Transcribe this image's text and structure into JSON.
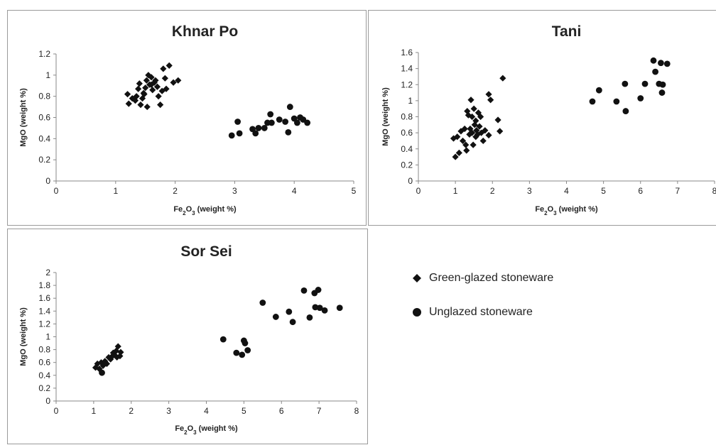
{
  "legend": {
    "items": [
      {
        "label": "Green-glazed stoneware",
        "marker": "diamond"
      },
      {
        "label": "Unglazed stoneware",
        "marker": "circle"
      }
    ]
  },
  "chart_data": [
    {
      "id": "khnar",
      "type": "scatter",
      "title": "Khnar Po",
      "xlabel": "Fe2O3 (weight %)",
      "ylabel": "MgO (weight %)",
      "xlim": [
        0,
        5
      ],
      "ylim": [
        0,
        1.2
      ],
      "xticks": [
        0,
        1,
        2,
        3,
        4,
        5
      ],
      "yticks": [
        0,
        0.2,
        0.4,
        0.6,
        0.8,
        1,
        1.2
      ],
      "grid": false,
      "series": [
        {
          "name": "Green-glazed stoneware",
          "marker": "diamond",
          "points": [
            [
              1.2,
              0.82
            ],
            [
              1.22,
              0.73
            ],
            [
              1.28,
              0.78
            ],
            [
              1.33,
              0.76
            ],
            [
              1.35,
              0.8
            ],
            [
              1.38,
              0.87
            ],
            [
              1.4,
              0.92
            ],
            [
              1.42,
              0.72
            ],
            [
              1.45,
              0.78
            ],
            [
              1.47,
              0.83
            ],
            [
              1.5,
              0.88
            ],
            [
              1.52,
              0.95
            ],
            [
              1.53,
              0.7
            ],
            [
              1.55,
              1.0
            ],
            [
              1.57,
              0.91
            ],
            [
              1.6,
              0.98
            ],
            [
              1.62,
              0.86
            ],
            [
              1.65,
              0.93
            ],
            [
              1.67,
              0.95
            ],
            [
              1.7,
              0.89
            ],
            [
              1.72,
              0.8
            ],
            [
              1.75,
              0.72
            ],
            [
              1.78,
              0.85
            ],
            [
              1.8,
              1.06
            ],
            [
              1.83,
              0.97
            ],
            [
              1.85,
              0.87
            ],
            [
              1.9,
              1.09
            ],
            [
              1.97,
              0.93
            ],
            [
              2.05,
              0.95
            ],
            [
              1.48,
              0.82
            ],
            [
              1.6,
              0.91
            ]
          ]
        },
        {
          "name": "Unglazed stoneware",
          "marker": "circle",
          "points": [
            [
              2.95,
              0.43
            ],
            [
              3.05,
              0.56
            ],
            [
              3.08,
              0.45
            ],
            [
              3.3,
              0.49
            ],
            [
              3.35,
              0.45
            ],
            [
              3.4,
              0.5
            ],
            [
              3.5,
              0.5
            ],
            [
              3.55,
              0.55
            ],
            [
              3.6,
              0.63
            ],
            [
              3.62,
              0.55
            ],
            [
              3.75,
              0.58
            ],
            [
              3.85,
              0.56
            ],
            [
              3.9,
              0.46
            ],
            [
              3.93,
              0.7
            ],
            [
              4.0,
              0.59
            ],
            [
              4.05,
              0.55
            ],
            [
              4.1,
              0.6
            ],
            [
              4.15,
              0.58
            ],
            [
              4.22,
              0.55
            ]
          ]
        }
      ]
    },
    {
      "id": "tani",
      "type": "scatter",
      "title": "Tani",
      "xlabel": "Fe2O3 (weight %)",
      "ylabel": "MgO (weight %)",
      "xlim": [
        0,
        8
      ],
      "ylim": [
        0,
        1.6
      ],
      "xticks": [
        0,
        1,
        2,
        3,
        4,
        5,
        6,
        7,
        8
      ],
      "yticks": [
        0,
        0.2,
        0.4,
        0.6,
        0.8,
        1,
        1.2,
        1.4,
        1.6
      ],
      "grid": false,
      "series": [
        {
          "name": "Green-glazed stoneware",
          "marker": "diamond",
          "points": [
            [
              0.95,
              0.53
            ],
            [
              1.0,
              0.3
            ],
            [
              1.05,
              0.55
            ],
            [
              1.1,
              0.35
            ],
            [
              1.15,
              0.62
            ],
            [
              1.2,
              0.5
            ],
            [
              1.25,
              0.65
            ],
            [
              1.28,
              0.45
            ],
            [
              1.3,
              0.38
            ],
            [
              1.32,
              0.87
            ],
            [
              1.35,
              0.82
            ],
            [
              1.38,
              0.58
            ],
            [
              1.4,
              0.65
            ],
            [
              1.42,
              1.01
            ],
            [
              1.45,
              0.6
            ],
            [
              1.48,
              0.45
            ],
            [
              1.5,
              0.9
            ],
            [
              1.52,
              0.7
            ],
            [
              1.55,
              0.75
            ],
            [
              1.57,
              0.63
            ],
            [
              1.6,
              0.58
            ],
            [
              1.62,
              0.85
            ],
            [
              1.65,
              0.68
            ],
            [
              1.68,
              0.8
            ],
            [
              1.7,
              0.6
            ],
            [
              1.75,
              0.5
            ],
            [
              1.8,
              0.63
            ],
            [
              1.9,
              0.57
            ],
            [
              1.9,
              1.08
            ],
            [
              1.95,
              1.01
            ],
            [
              2.15,
              0.76
            ],
            [
              2.2,
              0.62
            ],
            [
              2.28,
              1.28
            ],
            [
              1.45,
              0.8
            ],
            [
              1.55,
              0.55
            ]
          ]
        },
        {
          "name": "Unglazed stoneware",
          "marker": "circle",
          "points": [
            [
              4.7,
              0.99
            ],
            [
              4.88,
              1.13
            ],
            [
              5.35,
              0.99
            ],
            [
              5.58,
              1.21
            ],
            [
              5.6,
              0.87
            ],
            [
              6.0,
              1.03
            ],
            [
              6.12,
              1.21
            ],
            [
              6.35,
              1.5
            ],
            [
              6.4,
              1.36
            ],
            [
              6.5,
              1.21
            ],
            [
              6.55,
              1.47
            ],
            [
              6.58,
              1.1
            ],
            [
              6.6,
              1.2
            ],
            [
              6.72,
              1.46
            ]
          ]
        }
      ]
    },
    {
      "id": "sor",
      "type": "scatter",
      "title": "Sor Sei",
      "xlabel": "Fe2O3 (weight %)",
      "ylabel": "MgO (weight %)",
      "xlim": [
        0,
        8
      ],
      "ylim": [
        0,
        2
      ],
      "xticks": [
        0,
        1,
        2,
        3,
        4,
        5,
        6,
        7,
        8
      ],
      "yticks": [
        0,
        0.2,
        0.4,
        0.6,
        0.8,
        1,
        1.2,
        1.4,
        1.6,
        1.8,
        2
      ],
      "grid": false,
      "series": [
        {
          "name": "Green-glazed stoneware",
          "marker": "diamond",
          "points": [
            [
              1.05,
              0.52
            ],
            [
              1.1,
              0.58
            ],
            [
              1.15,
              0.5
            ],
            [
              1.2,
              0.6
            ],
            [
              1.25,
              0.55
            ],
            [
              1.3,
              0.62
            ],
            [
              1.35,
              0.58
            ],
            [
              1.4,
              0.68
            ],
            [
              1.45,
              0.65
            ],
            [
              1.5,
              0.7
            ],
            [
              1.55,
              0.72
            ],
            [
              1.6,
              0.78
            ],
            [
              1.62,
              0.68
            ],
            [
              1.65,
              0.85
            ],
            [
              1.7,
              0.7
            ],
            [
              1.72,
              0.76
            ],
            [
              1.52,
              0.75
            ]
          ]
        },
        {
          "name": "Unglazed stoneware",
          "marker": "circle",
          "points": [
            [
              1.22,
              0.44
            ],
            [
              4.45,
              0.96
            ],
            [
              4.8,
              0.75
            ],
            [
              4.95,
              0.72
            ],
            [
              5.0,
              0.94
            ],
            [
              5.03,
              0.9
            ],
            [
              5.1,
              0.79
            ],
            [
              5.5,
              1.53
            ],
            [
              5.85,
              1.31
            ],
            [
              6.2,
              1.39
            ],
            [
              6.3,
              1.23
            ],
            [
              6.6,
              1.72
            ],
            [
              6.75,
              1.3
            ],
            [
              6.88,
              1.68
            ],
            [
              6.9,
              1.46
            ],
            [
              6.98,
              1.73
            ],
            [
              7.02,
              1.45
            ],
            [
              7.15,
              1.41
            ],
            [
              7.55,
              1.45
            ]
          ]
        }
      ]
    }
  ]
}
